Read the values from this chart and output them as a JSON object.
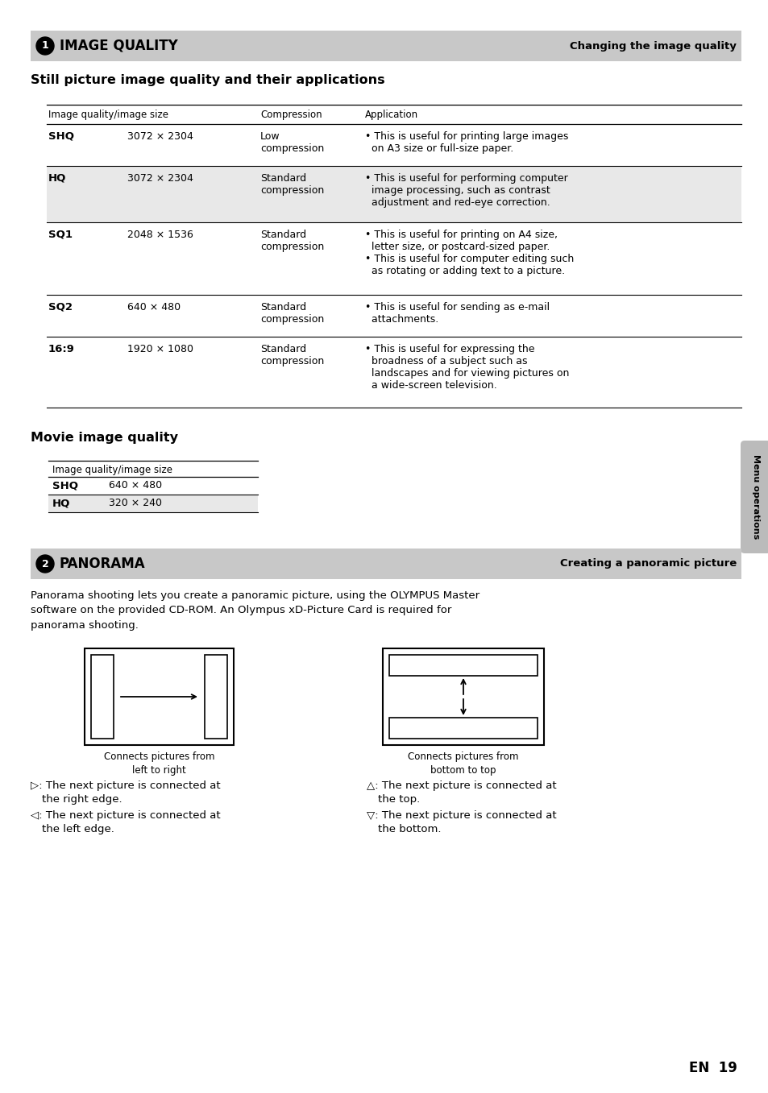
{
  "bg_color": "#ffffff",
  "header_bg": "#c8c8c8",
  "header_section1_title": "IMAGE QUALITY",
  "header_section1_right": "Changing the image quality",
  "section1_subtitle": "Still picture image quality and their applications",
  "table_rows": [
    {
      "quality": "SHQ",
      "size": "3072 × 2304",
      "compression": "Low\ncompression",
      "application": "• This is useful for printing large images\n  on A3 size or full-size paper.",
      "shaded": false
    },
    {
      "quality": "HQ",
      "size": "3072 × 2304",
      "compression": "Standard\ncompression",
      "application": "• This is useful for performing computer\n  image processing, such as contrast\n  adjustment and red-eye correction.",
      "shaded": true
    },
    {
      "quality": "SQ1",
      "size": "2048 × 1536",
      "compression": "Standard\ncompression",
      "application": "• This is useful for printing on A4 size,\n  letter size, or postcard-sized paper.\n• This is useful for computer editing such\n  as rotating or adding text to a picture.",
      "shaded": false
    },
    {
      "quality": "SQ2",
      "size": "640 × 480",
      "compression": "Standard\ncompression",
      "application": "• This is useful for sending as e-mail\n  attachments.",
      "shaded": false
    },
    {
      "quality": "16:9",
      "size": "1920 × 1080",
      "compression": "Standard\ncompression",
      "application": "• This is useful for expressing the\n  broadness of a subject such as\n  landscapes and for viewing pictures on\n  a wide-screen television.",
      "shaded": false
    }
  ],
  "movie_subtitle": "Movie image quality",
  "movie_table_header": "Image quality/image size",
  "movie_rows": [
    {
      "quality": "SHQ",
      "size": "640 × 480",
      "shaded": false
    },
    {
      "quality": "HQ",
      "size": "320 × 240",
      "shaded": true
    }
  ],
  "header_section2_title": "PANORAMA",
  "header_section2_right": "Creating a panoramic picture",
  "panorama_text": "Panorama shooting lets you create a panoramic picture, using the OLYMPUS Master\nsoftware on the provided CD-ROM. An Olympus xD-Picture Card is required for\npanorama shooting.",
  "caption_left": "Connects pictures from\nleft to right",
  "caption_right": "Connects pictures from\nbottom to top",
  "bullet_left1": "▷: The next picture is connected at\n    the right edge.",
  "bullet_left2": "◁: The next picture is connected at\n    the left edge.",
  "bullet_right1": "△: The next picture is connected at\n    the top.",
  "bullet_right2": "▽: The next picture is connected at\n    the bottom.",
  "footer_text": "EN  19",
  "side_tab_text": "Menu operations",
  "shade_color": "#e8e8e8",
  "tab_color": "#bbbbbb"
}
